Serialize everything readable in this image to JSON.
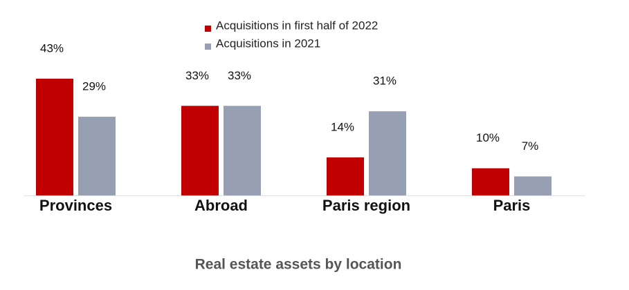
{
  "chart_data": {
    "type": "bar",
    "title": "Real estate assets by location",
    "categories": [
      "Provinces",
      "Abroad",
      "Paris region",
      "Paris"
    ],
    "series": [
      {
        "name": "Acquisitions in first half of 2022",
        "color": "#c00000",
        "values": [
          43,
          33,
          14,
          10
        ],
        "value_labels": [
          "43%",
          "33%",
          "14%",
          "10%"
        ]
      },
      {
        "name": "Acquisitions in 2021",
        "color": "#97a0b2",
        "values": [
          29,
          33,
          31,
          7
        ],
        "value_labels": [
          "29%",
          "33%",
          "31%",
          "7%"
        ]
      }
    ]
  }
}
